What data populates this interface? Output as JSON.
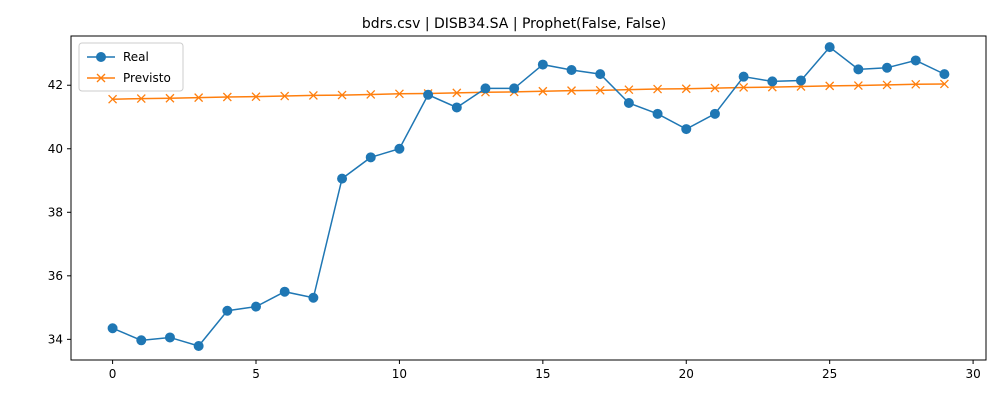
{
  "chart_data": {
    "type": "line",
    "title": "bdrs.csv | DISB34.SA | Prophet(False, False)",
    "xlabel": "",
    "ylabel": "",
    "xlim": [
      -1.45,
      30.45
    ],
    "ylim": [
      33.35,
      43.55
    ],
    "xticks": [
      0,
      5,
      10,
      15,
      20,
      25,
      30
    ],
    "yticks": [
      34,
      36,
      38,
      40,
      42
    ],
    "grid": false,
    "legend_position": "top-left",
    "x": [
      0,
      1,
      2,
      3,
      4,
      5,
      6,
      7,
      8,
      9,
      10,
      11,
      12,
      13,
      14,
      15,
      16,
      17,
      18,
      19,
      20,
      21,
      22,
      23,
      24,
      25,
      26,
      27,
      28,
      29
    ],
    "series": [
      {
        "name": "Real",
        "color": "#1f77b4",
        "marker": "circle",
        "values": [
          34.35,
          33.97,
          34.06,
          33.79,
          34.9,
          35.03,
          35.5,
          35.31,
          39.06,
          39.73,
          40.0,
          41.7,
          41.3,
          41.9,
          41.9,
          42.65,
          42.48,
          42.35,
          41.44,
          41.1,
          40.62,
          41.1,
          42.27,
          42.12,
          42.15,
          43.2,
          42.5,
          42.55,
          42.78,
          42.35
        ]
      },
      {
        "name": "Previsto",
        "color": "#ff7f0e",
        "marker": "x",
        "values": [
          41.56,
          41.58,
          41.59,
          41.61,
          41.63,
          41.64,
          41.66,
          41.68,
          41.69,
          41.71,
          41.73,
          41.74,
          41.76,
          41.78,
          41.79,
          41.81,
          41.83,
          41.84,
          41.86,
          41.88,
          41.89,
          41.91,
          41.93,
          41.94,
          41.96,
          41.98,
          41.99,
          42.01,
          42.03,
          42.04
        ]
      }
    ]
  }
}
